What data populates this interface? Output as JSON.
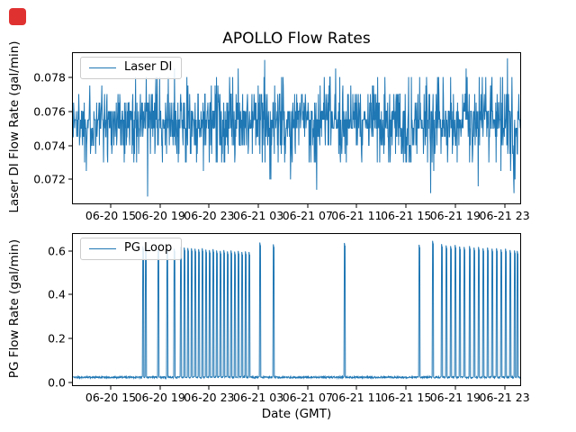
{
  "screen": {
    "recording_marker_color": "#e03131"
  },
  "chart_data": [
    {
      "type": "line",
      "title": "APOLLO Flow Rates",
      "ylabel": "Laser DI Flow Rate (gal/min)",
      "xlabel": "",
      "legend": {
        "label": "Laser DI",
        "loc": "upper left"
      },
      "line_color": "#1f77b4",
      "grid": false,
      "ylim": [
        0.0706,
        0.0794
      ],
      "yticks": {
        "values": [
          0.072,
          0.074,
          0.076,
          0.078
        ],
        "labels": [
          "0.072",
          "0.074",
          "0.076",
          "0.078"
        ]
      },
      "xticks": {
        "labels": [
          "06-20 15",
          "06-20 19",
          "06-20 23",
          "06-21 03",
          "06-21 07",
          "06-21 11",
          "06-21 15",
          "06-21 19",
          "06-21 23"
        ],
        "fracs": [
          0.0845,
          0.1945,
          0.3046,
          0.4146,
          0.5247,
          0.6347,
          0.7448,
          0.8548,
          0.9649
        ]
      },
      "series": {
        "name": "Laser DI",
        "kind": "quantized-noise",
        "n": 1300,
        "seed": 1337,
        "levels": [
          0.072,
          0.0725,
          0.073,
          0.0735,
          0.074,
          0.0745,
          0.075,
          0.0755,
          0.076,
          0.0765,
          0.077,
          0.0775,
          0.078,
          0.0785
        ],
        "weights": [
          0.5,
          0.7,
          3,
          4,
          9,
          8,
          17,
          20,
          17,
          8,
          7,
          1.5,
          2.8,
          0.3
        ],
        "events": [
          {
            "f": 0.167,
            "v": 0.071
          },
          {
            "f": 0.4286,
            "v": 0.079
          },
          {
            "f": 0.545,
            "v": 0.0714
          },
          {
            "f": 0.8,
            "v": 0.0712
          },
          {
            "f": 0.906,
            "v": 0.0716
          },
          {
            "f": 0.9718,
            "v": 0.0791
          },
          {
            "f": 0.9859,
            "v": 0.0712
          }
        ]
      }
    },
    {
      "type": "line",
      "title": "",
      "ylabel": "PG Flow Rate (gal/min)",
      "xlabel": "Date (GMT)",
      "legend": {
        "label": "PG Loop",
        "loc": "upper left"
      },
      "line_color": "#1f77b4",
      "grid": false,
      "ylim": [
        -0.012,
        0.676
      ],
      "yticks": {
        "values": [
          0.0,
          0.2,
          0.4,
          0.6
        ],
        "labels": [
          "0.0",
          "0.2",
          "0.4",
          "0.6"
        ]
      },
      "xticks": {
        "labels": [
          "06-20 15",
          "06-20 19",
          "06-20 23",
          "06-21 03",
          "06-21 07",
          "06-21 11",
          "06-21 15",
          "06-21 19",
          "06-21 23"
        ],
        "fracs": [
          0.0845,
          0.1945,
          0.3046,
          0.4146,
          0.5247,
          0.6347,
          0.7448,
          0.8548,
          0.9649
        ]
      },
      "series": {
        "name": "PG Loop",
        "kind": "baseline-spikes",
        "n": 1500,
        "seed": 2024,
        "base": 0.024,
        "jitter": 0.004,
        "spikes": [
          [
            0.157,
            0.62
          ],
          [
            0.163,
            0.618
          ],
          [
            0.191,
            0.614
          ],
          [
            0.211,
            0.61
          ],
          [
            0.227,
            0.609
          ],
          [
            0.2414,
            0.617
          ],
          [
            0.2495,
            0.614
          ],
          [
            0.2575,
            0.612
          ],
          [
            0.2656,
            0.611
          ],
          [
            0.2736,
            0.609
          ],
          [
            0.2817,
            0.607
          ],
          [
            0.2897,
            0.611
          ],
          [
            0.2978,
            0.605
          ],
          [
            0.3058,
            0.603
          ],
          [
            0.3139,
            0.607
          ],
          [
            0.3219,
            0.601
          ],
          [
            0.33,
            0.599
          ],
          [
            0.338,
            0.603
          ],
          [
            0.3461,
            0.597
          ],
          [
            0.3541,
            0.601
          ],
          [
            0.3622,
            0.596
          ],
          [
            0.3702,
            0.599
          ],
          [
            0.3783,
            0.594
          ],
          [
            0.3863,
            0.597
          ],
          [
            0.3944,
            0.594
          ],
          [
            0.4185,
            0.637
          ],
          [
            0.4487,
            0.629
          ],
          [
            0.6076,
            0.635
          ],
          [
            0.7746,
            0.627
          ],
          [
            0.8048,
            0.645
          ],
          [
            0.8249,
            0.63
          ],
          [
            0.835,
            0.624
          ],
          [
            0.8451,
            0.621
          ],
          [
            0.8551,
            0.626
          ],
          [
            0.8652,
            0.619
          ],
          [
            0.8753,
            0.617
          ],
          [
            0.8873,
            0.621
          ],
          [
            0.8974,
            0.614
          ],
          [
            0.9074,
            0.617
          ],
          [
            0.9175,
            0.611
          ],
          [
            0.9276,
            0.614
          ],
          [
            0.9376,
            0.609
          ],
          [
            0.9477,
            0.611
          ],
          [
            0.9577,
            0.606
          ],
          [
            0.9678,
            0.609
          ],
          [
            0.9779,
            0.603
          ],
          [
            0.9879,
            0.601
          ],
          [
            0.994,
            0.599
          ]
        ]
      }
    }
  ]
}
